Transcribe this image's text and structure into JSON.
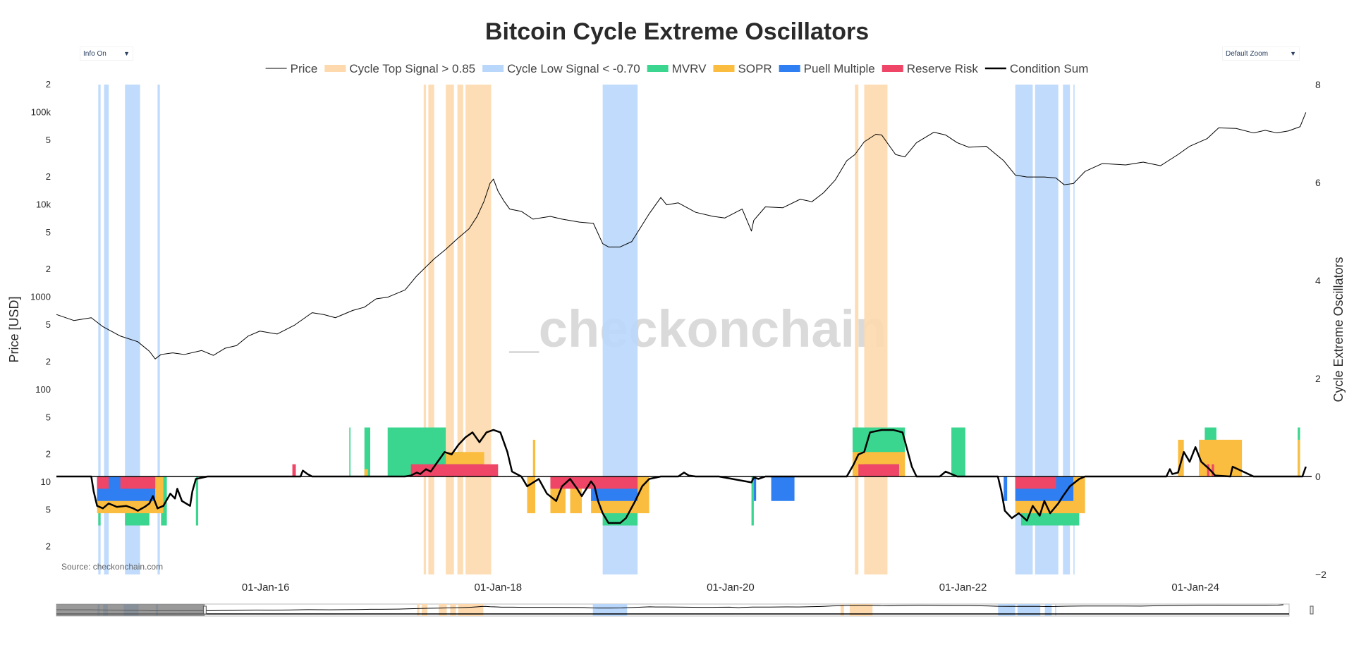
{
  "chart_data": {
    "type": "line",
    "title": "Bitcoin Cycle Extreme Oscillators",
    "buttons": {
      "info": "Info On",
      "zoom": "Default Zoom"
    },
    "legend": {
      "placement": "top-center",
      "items": [
        {
          "name": "Price",
          "kind": "line",
          "color": "#000000",
          "width": 1
        },
        {
          "name": "Cycle Top Signal > 0.85",
          "kind": "fill",
          "color": "#fdd9ad"
        },
        {
          "name": "Cycle Low Signal < -0.70",
          "kind": "fill",
          "color": "#b9d7fb"
        },
        {
          "name": "MVRV",
          "kind": "fill",
          "color": "#3ad58e"
        },
        {
          "name": "SOPR",
          "kind": "fill",
          "color": "#fbbd3f"
        },
        {
          "name": "Puell Multiple",
          "kind": "fill",
          "color": "#2f7ff2"
        },
        {
          "name": "Reserve Risk",
          "kind": "fill",
          "color": "#ef4667"
        },
        {
          "name": "Condition Sum",
          "kind": "line",
          "color": "#000000",
          "width": 2.5
        }
      ]
    },
    "y_left": {
      "label": "Price [USD]",
      "scale": "log",
      "range": [
        1,
        200000
      ],
      "ticks": [
        {
          "v": 2,
          "t": "2"
        },
        {
          "v": 5,
          "t": "5"
        },
        {
          "v": 10,
          "t": "10"
        },
        {
          "v": 20,
          "t": "2"
        },
        {
          "v": 50,
          "t": "5"
        },
        {
          "v": 100,
          "t": "100"
        },
        {
          "v": 200,
          "t": "2"
        },
        {
          "v": 500,
          "t": "5"
        },
        {
          "v": 1000,
          "t": "1000"
        },
        {
          "v": 2000,
          "t": "2"
        },
        {
          "v": 5000,
          "t": "5"
        },
        {
          "v": 10000,
          "t": "10k"
        },
        {
          "v": 20000,
          "t": "2"
        },
        {
          "v": 50000,
          "t": "5"
        },
        {
          "v": 100000,
          "t": "100k"
        },
        {
          "v": 200000,
          "t": "2"
        }
      ]
    },
    "y_right": {
      "label": "Cycle Extreme Oscillators",
      "range": [
        -2,
        8
      ],
      "ticks": [
        {
          "v": 8,
          "t": "8"
        },
        {
          "v": 6,
          "t": "6"
        },
        {
          "v": 4,
          "t": "4"
        },
        {
          "v": 2,
          "t": "2"
        },
        {
          "v": 0,
          "t": "0"
        },
        {
          "v": -2,
          "t": "−2"
        }
      ]
    },
    "x_axis": {
      "range": [
        2014.2,
        2025.0
      ],
      "ticks": [
        {
          "v": 2016.0,
          "t": "01-Jan-16"
        },
        {
          "v": 2018.0,
          "t": "01-Jan-18"
        },
        {
          "v": 2020.0,
          "t": "01-Jan-20"
        },
        {
          "v": 2022.0,
          "t": "01-Jan-22"
        },
        {
          "v": 2024.0,
          "t": "01-Jan-24"
        }
      ]
    },
    "grid": false,
    "source": "Source: checkonchain.com",
    "watermark": "_checkonchain",
    "series": [
      {
        "name": "Price",
        "x": [
          2014.2,
          2014.35,
          2014.5,
          2014.6,
          2014.75,
          2014.9,
          2015.0,
          2015.05,
          2015.1,
          2015.2,
          2015.3,
          2015.45,
          2015.55,
          2015.65,
          2015.75,
          2015.85,
          2015.95,
          2016.1,
          2016.25,
          2016.4,
          2016.5,
          2016.6,
          2016.75,
          2016.85,
          2016.95,
          2017.05,
          2017.2,
          2017.3,
          2017.45,
          2017.55,
          2017.65,
          2017.75,
          2017.82,
          2017.88,
          2017.93,
          2017.96,
          2018.0,
          2018.05,
          2018.1,
          2018.2,
          2018.3,
          2018.45,
          2018.55,
          2018.7,
          2018.82,
          2018.9,
          2018.95,
          2019.05,
          2019.15,
          2019.3,
          2019.4,
          2019.45,
          2019.55,
          2019.7,
          2019.85,
          2019.95,
          2020.1,
          2020.18,
          2020.2,
          2020.3,
          2020.45,
          2020.6,
          2020.7,
          2020.8,
          2020.9,
          2021.0,
          2021.07,
          2021.15,
          2021.25,
          2021.3,
          2021.42,
          2021.5,
          2021.6,
          2021.75,
          2021.85,
          2021.95,
          2022.05,
          2022.2,
          2022.35,
          2022.45,
          2022.55,
          2022.7,
          2022.8,
          2022.87,
          2022.95,
          2023.05,
          2023.2,
          2023.4,
          2023.55,
          2023.7,
          2023.85,
          2023.95,
          2024.1,
          2024.2,
          2024.35,
          2024.5,
          2024.6,
          2024.7,
          2024.8,
          2024.9,
          2024.95
        ],
        "y": [
          650,
          560,
          600,
          480,
          380,
          330,
          260,
          215,
          240,
          250,
          240,
          265,
          235,
          280,
          300,
          380,
          430,
          400,
          500,
          680,
          650,
          600,
          720,
          780,
          960,
          1000,
          1200,
          1700,
          2600,
          3300,
          4300,
          5500,
          7500,
          11000,
          17000,
          19000,
          14000,
          11000,
          9000,
          8500,
          7000,
          7500,
          7000,
          6500,
          6300,
          3800,
          3500,
          3500,
          4000,
          8000,
          12000,
          10000,
          10500,
          8300,
          7500,
          7200,
          9000,
          5200,
          6800,
          9500,
          9300,
          11500,
          10800,
          13500,
          18500,
          30000,
          35000,
          48000,
          58000,
          57000,
          35000,
          33000,
          47000,
          61000,
          57000,
          47000,
          42000,
          43000,
          30000,
          21000,
          20000,
          20000,
          19500,
          16500,
          17000,
          23000,
          28000,
          27000,
          29000,
          26500,
          35000,
          43000,
          52000,
          68000,
          67000,
          60000,
          64000,
          60000,
          63000,
          70000,
          100000
        ]
      },
      {
        "name": "Condition Sum",
        "x": [
          2014.2,
          2014.5,
          2014.52,
          2014.55,
          2014.6,
          2014.65,
          2014.72,
          2014.8,
          2014.86,
          2014.9,
          2014.96,
          2015.0,
          2015.03,
          2015.07,
          2015.12,
          2015.18,
          2015.22,
          2015.24,
          2015.28,
          2015.35,
          2015.37,
          2015.4,
          2015.5,
          2016.3,
          2016.32,
          2016.36,
          2016.4,
          2017.2,
          2017.25,
          2017.3,
          2017.33,
          2017.38,
          2017.42,
          2017.48,
          2017.54,
          2017.6,
          2017.66,
          2017.72,
          2017.78,
          2017.84,
          2017.9,
          2017.96,
          2018.02,
          2018.08,
          2018.12,
          2018.2,
          2018.25,
          2018.35,
          2018.42,
          2018.5,
          2018.55,
          2018.62,
          2018.68,
          2018.72,
          2018.8,
          2018.83,
          2018.86,
          2018.9,
          2018.95,
          2019.05,
          2019.1,
          2019.18,
          2019.24,
          2019.3,
          2019.4,
          2019.55,
          2019.6,
          2019.64,
          2019.7,
          2019.9,
          2020.18,
          2020.2,
          2020.24,
          2020.3,
          2020.35,
          2020.4,
          2020.5,
          2021.0,
          2021.06,
          2021.1,
          2021.15,
          2021.2,
          2021.3,
          2021.4,
          2021.48,
          2021.52,
          2021.56,
          2021.6,
          2021.8,
          2021.85,
          2021.9,
          2021.95,
          2022.0,
          2022.3,
          2022.33,
          2022.36,
          2022.42,
          2022.48,
          2022.55,
          2022.6,
          2022.66,
          2022.7,
          2022.75,
          2022.82,
          2022.86,
          2022.92,
          2023.0,
          2023.05,
          2023.1,
          2023.5,
          2023.75,
          2023.78,
          2023.8,
          2023.85,
          2023.9,
          2023.95,
          2024.0,
          2024.05,
          2024.12,
          2024.17,
          2024.3,
          2024.32,
          2024.5,
          2024.88,
          2024.92,
          2024.95
        ],
        "y": [
          0,
          0,
          -0.3,
          -0.6,
          -0.65,
          -0.55,
          -0.62,
          -0.6,
          -0.65,
          -0.7,
          -0.62,
          -0.55,
          -0.4,
          -0.65,
          -0.6,
          -0.35,
          -0.45,
          -0.25,
          -0.5,
          -0.6,
          -0.3,
          -0.05,
          0,
          0,
          0.12,
          0.05,
          0,
          0,
          0.02,
          0.08,
          0.05,
          0.15,
          0.1,
          0.3,
          0.5,
          0.45,
          0.65,
          0.8,
          0.9,
          0.7,
          0.9,
          0.95,
          0.9,
          0.5,
          0.1,
          0,
          -0.2,
          -0.05,
          -0.35,
          -0.5,
          -0.2,
          -0.05,
          -0.25,
          -0.4,
          -0.1,
          -0.2,
          -0.5,
          -0.75,
          -0.95,
          -0.95,
          -0.85,
          -0.5,
          -0.2,
          -0.05,
          0,
          0,
          0.08,
          0.02,
          0,
          0,
          -0.12,
          -0.02,
          -0.05,
          0,
          0,
          0,
          0,
          0,
          0.25,
          0.45,
          0.5,
          0.9,
          0.95,
          0.95,
          0.9,
          0.55,
          0.2,
          0,
          0,
          0.1,
          0.05,
          0,
          0,
          0,
          -0.3,
          -0.7,
          -0.85,
          -0.75,
          -0.9,
          -0.6,
          -0.8,
          -0.5,
          -0.75,
          -0.55,
          -0.4,
          -0.2,
          -0.05,
          0,
          0,
          0,
          0,
          0.15,
          0.05,
          0.08,
          0.5,
          0.3,
          0.6,
          0.3,
          0.15,
          0.02,
          0,
          0.2,
          0,
          0,
          0,
          0.2
        ]
      }
    ],
    "bands": {
      "top": [
        [
          2017.36,
          2017.38
        ],
        [
          2017.4,
          2017.45
        ],
        [
          2017.55,
          2017.62
        ],
        [
          2017.65,
          2017.7
        ],
        [
          2017.72,
          2017.94
        ],
        [
          2021.07,
          2021.1
        ],
        [
          2021.15,
          2021.35
        ]
      ],
      "low": [
        [
          2014.56,
          2014.58
        ],
        [
          2014.61,
          2014.65
        ],
        [
          2014.79,
          2014.92
        ],
        [
          2015.07,
          2015.09
        ],
        [
          2018.9,
          2019.2
        ],
        [
          2022.45,
          2022.6
        ],
        [
          2022.62,
          2022.82
        ],
        [
          2022.86,
          2022.92
        ],
        [
          2022.95,
          2022.96
        ]
      ]
    },
    "oscillators": {
      "MVRV": [
        [
          2016.72,
          2016.73,
          1
        ],
        [
          2016.85,
          2016.9,
          1
        ],
        [
          2017.05,
          2017.55,
          1
        ],
        [
          2017.55,
          2017.7,
          0.5
        ],
        [
          2021.05,
          2021.5,
          1
        ],
        [
          2021.9,
          2022.02,
          1
        ],
        [
          2024.08,
          2024.18,
          1
        ],
        [
          2024.88,
          2024.9,
          1
        ],
        [
          2014.56,
          2014.58,
          -1
        ],
        [
          2014.79,
          2015.0,
          -1
        ],
        [
          2015.1,
          2015.15,
          -1
        ],
        [
          2015.4,
          2015.42,
          -1
        ],
        [
          2018.9,
          2019.2,
          -1
        ],
        [
          2020.18,
          2020.2,
          -1
        ],
        [
          2022.5,
          2023.0,
          -1
        ]
      ],
      "SOPR": [
        [
          2016.85,
          2016.88,
          0.15
        ],
        [
          2017.55,
          2017.88,
          0.5
        ],
        [
          2018.3,
          2018.32,
          0.75
        ],
        [
          2021.05,
          2021.5,
          0.5
        ],
        [
          2023.85,
          2023.9,
          0.75
        ],
        [
          2024.03,
          2024.4,
          0.75
        ],
        [
          2024.88,
          2024.9,
          0.75
        ],
        [
          2014.55,
          2015.12,
          -0.75
        ],
        [
          2018.25,
          2018.32,
          -0.75
        ],
        [
          2018.45,
          2018.58,
          -0.75
        ],
        [
          2018.62,
          2018.72,
          -0.75
        ],
        [
          2018.8,
          2019.3,
          -0.75
        ],
        [
          2022.45,
          2023.05,
          -0.75
        ]
      ],
      "Puell Multiple": [
        [
          2017.38,
          2017.88,
          0.25
        ],
        [
          2021.15,
          2021.45,
          0.25
        ],
        [
          2014.55,
          2015.05,
          -0.5
        ],
        [
          2018.8,
          2019.2,
          -0.5
        ],
        [
          2020.2,
          2020.22,
          -0.5
        ],
        [
          2020.35,
          2020.55,
          -0.5
        ],
        [
          2022.35,
          2022.38,
          -0.5
        ],
        [
          2022.45,
          2022.95,
          -0.5
        ]
      ],
      "Reserve Risk": [
        [
          2016.23,
          2016.26,
          0.25
        ],
        [
          2017.25,
          2018.0,
          0.25
        ],
        [
          2021.1,
          2021.45,
          0.25
        ],
        [
          2024.1,
          2024.12,
          0.25
        ],
        [
          2024.14,
          2024.16,
          0.25
        ],
        [
          2014.55,
          2014.65,
          -0.25
        ],
        [
          2014.75,
          2015.05,
          -0.25
        ],
        [
          2018.45,
          2019.2,
          -0.25
        ],
        [
          2022.45,
          2022.8,
          -0.25
        ]
      ]
    }
  }
}
